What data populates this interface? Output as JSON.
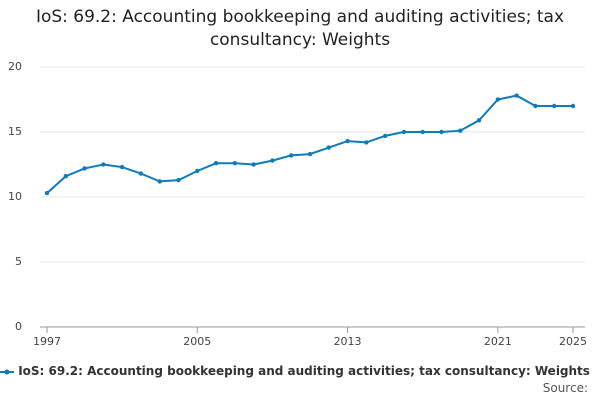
{
  "chart_data": {
    "type": "line",
    "title": "IoS: 69.2: Accounting bookkeeping and auditing activities; tax consultancy: Weights",
    "x": [
      1997,
      1998,
      1999,
      2000,
      2001,
      2002,
      2003,
      2004,
      2005,
      2006,
      2007,
      2008,
      2009,
      2010,
      2011,
      2012,
      2013,
      2014,
      2015,
      2016,
      2017,
      2018,
      2019,
      2020,
      2021,
      2022,
      2023,
      2024,
      2025
    ],
    "series": [
      {
        "name": "IoS: 69.2: Accounting bookkeeping and auditing activities; tax consultancy: Weights",
        "color": "#0f7bb8",
        "values": [
          10.3,
          11.6,
          12.2,
          12.5,
          12.3,
          11.8,
          11.2,
          11.3,
          12.0,
          12.6,
          12.6,
          12.5,
          12.8,
          13.2,
          13.3,
          13.8,
          14.3,
          14.2,
          14.7,
          15.0,
          15.0,
          15.0,
          15.1,
          15.9,
          17.5,
          17.8,
          17.0,
          17.0,
          17.0
        ]
      }
    ],
    "xlim": [
      1997,
      2025
    ],
    "xticks": [
      1997,
      2005,
      2013,
      2021,
      2025
    ],
    "ylim": [
      0,
      20
    ],
    "yticks": [
      0,
      5,
      10,
      15,
      20
    ],
    "grid": true,
    "source": "Source:"
  }
}
